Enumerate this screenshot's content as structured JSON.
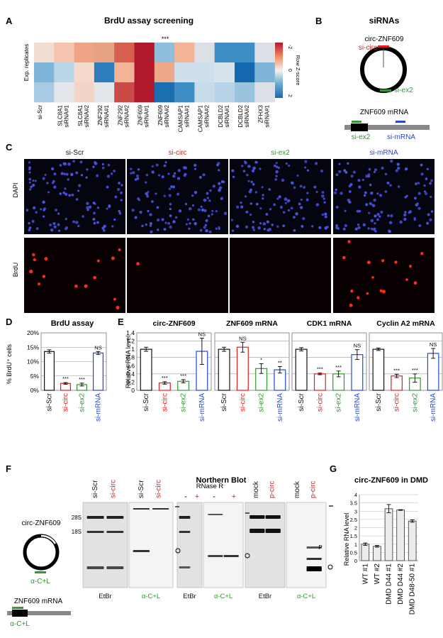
{
  "panels": {
    "A": {
      "letter": "A",
      "title": "BrdU assay screening",
      "ylabel": "Exp. replicates",
      "significance": "***",
      "colorbar_label": "Row Z-score",
      "colorbar_ticks": [
        "-2",
        "0",
        "2"
      ],
      "columns": [
        "si-Scr",
        "SLC8A1 siRNA#1",
        "SLC8A1 siRNA#2",
        "ZNF292 siRNA#1",
        "ZNF292 siRNA#2",
        "ZNF609 siRNA#1",
        "ZNF609 siRNA#2",
        "CAMSAP1 siRNA#1",
        "CAMSAP1 siRNA#2",
        "DCBLD2 siRNA#1",
        "DCBLD2 siRNA#2",
        "ZFHX3 siRNA#1"
      ],
      "col_line1": [
        "si-Scr",
        "SLC8A1",
        "SLC8A1",
        "ZNF292",
        "ZNF292",
        "ZNF609",
        "ZNF609",
        "CAMSAP1",
        "CAMSAP1",
        "DCBLD2",
        "DCBLD2",
        "ZFHX3"
      ],
      "col_line2": [
        "",
        "siRNA#1",
        "siRNA#2",
        "siRNA#1",
        "siRNA#2",
        "siRNA#1",
        "siRNA#2",
        "siRNA#1",
        "siRNA#2",
        "siRNA#1",
        "siRNA#2",
        "siRNA#1"
      ],
      "rows": [
        [
          "#f0dcd1",
          "#f5c4ae",
          "#eea485",
          "#e7a284",
          "#d76050",
          "#b2182b",
          "#8fbfdd",
          "#f3b396",
          "#dcdfe6",
          "#3d8ec5",
          "#3d8ec5",
          "#dcdfe6"
        ],
        [
          "#7fb5d9",
          "#b9d5e8",
          "#f5dacc",
          "#2d7dbc",
          "#f3b396",
          "#b2182b",
          "#f0a88a",
          "#cfe0ec",
          "#cfe0ec",
          "#d7e3ec",
          "#1468ae",
          "#7fb5d9"
        ],
        [
          "#a6cbe3",
          "#e3e6ea",
          "#f3d5c8",
          "#e3e6ea",
          "#c94a47",
          "#b2182b",
          "#1a6fb2",
          "#3d8ec5",
          "#c6dcea",
          "#b6d3e7",
          "#9ac3df",
          "#dcdfe6"
        ]
      ]
    },
    "B": {
      "letter": "B",
      "title": "siRNAs",
      "circ_label": "circ-ZNF609",
      "si_circ": "si-circ",
      "si_ex2": "si-ex2",
      "mrna_label": "ZNF609 mRNA",
      "si_ex2_2": "si-ex2",
      "si_mrna": "si-mRNA"
    },
    "C": {
      "letter": "C",
      "columns": [
        "si-Scr",
        "si-circ",
        "si-ex2",
        "si-mRNA"
      ],
      "rows": [
        "DAPI",
        "BrdU"
      ]
    },
    "D": {
      "letter": "D",
      "title": "BrdU assay",
      "ylabel": "% BrdU⁺ cells",
      "ticks": [
        "0%",
        "5%",
        "10%",
        "15%",
        "20%"
      ]
    },
    "E": {
      "letter": "E",
      "ylabel": "Relative RNA level",
      "ticks": [
        "0",
        "0.2",
        "0.4",
        "0.6",
        "0.8",
        "1",
        "1.2",
        "1.4"
      ],
      "subtitles": [
        "circ-ZNF609",
        "ZNF609 mRNA",
        "CDK1 mRNA",
        "Cyclin A2 mRNA"
      ]
    },
    "F": {
      "letter": "F",
      "title": "Northern Blot",
      "circ_label": "circ-ZNF609",
      "probe": "α-C+L",
      "mrna_label": "ZNF609 mRNA",
      "probe2": "α-C+L",
      "gel1_lanes": [
        "si-Scr",
        "si-circ"
      ],
      "gel2_lanes": [
        "si-Scr",
        "si-circ"
      ],
      "rnase_label": "RNase R",
      "rnase_minus": "-",
      "rnase_plus": "+",
      "gel5_lanes": [
        "mock",
        "p-circ"
      ],
      "gel6_lanes": [
        "mock",
        "p-circ"
      ],
      "s28": "28S",
      "s18": "18S",
      "p_label": "P",
      "stain_etbr": "EtBr",
      "stain_probe": "α-C+L"
    },
    "G": {
      "letter": "G",
      "title": "circ-ZNF609 in DMD",
      "ylabel": "Relative RNA level",
      "ticks": [
        "0",
        "0.5",
        "1",
        "1.5",
        "2",
        "2.5",
        "3",
        "3.5",
        "4"
      ]
    }
  },
  "colors": {
    "black": "#111111",
    "red": "#e41a1c",
    "green": "#2f9a2f",
    "blue": "#2447d8",
    "dapi": "#4a55e8",
    "brdu": "#ff2a1a"
  },
  "chart_data": [
    {
      "type": "bar",
      "title": "BrdU assay",
      "ylabel": "% BrdU⁺ cells",
      "ylim": [
        0,
        20
      ],
      "categories": [
        "si-Scr",
        "si-circ",
        "si-ex2",
        "si-mRNA"
      ],
      "values": [
        13.5,
        2.4,
        2.0,
        13.0
      ],
      "errors": [
        0.6,
        0.3,
        0.5,
        0.5
      ],
      "significance": [
        "",
        "***",
        "***",
        "NS"
      ],
      "colors": [
        "#111111",
        "#e41a1c",
        "#2f9a2f",
        "#2447d8"
      ]
    },
    {
      "type": "bar",
      "title": "circ-ZNF609",
      "ylabel": "Relative RNA level",
      "ylim": [
        0,
        1.4
      ],
      "categories": [
        "si-Scr",
        "si-circ",
        "si-ex2",
        "si-mRNA"
      ],
      "values": [
        1.0,
        0.18,
        0.22,
        0.95
      ],
      "errors": [
        0.05,
        0.03,
        0.04,
        0.32
      ],
      "significance": [
        "",
        "***",
        "***",
        "NS"
      ],
      "colors": [
        "#111111",
        "#e41a1c",
        "#2f9a2f",
        "#2447d8"
      ]
    },
    {
      "type": "bar",
      "title": "ZNF609 mRNA",
      "ylim": [
        0,
        1.4
      ],
      "categories": [
        "si-Scr",
        "si-circ",
        "si-ex2",
        "si-mRNA"
      ],
      "values": [
        1.0,
        1.05,
        0.53,
        0.5
      ],
      "errors": [
        0.05,
        0.12,
        0.12,
        0.08
      ],
      "significance": [
        "",
        "NS",
        "*",
        "**"
      ],
      "colors": [
        "#111111",
        "#e41a1c",
        "#2f9a2f",
        "#2447d8"
      ]
    },
    {
      "type": "bar",
      "title": "CDK1 mRNA",
      "ylim": [
        0,
        1.4
      ],
      "categories": [
        "si-Scr",
        "si-circ",
        "si-ex2",
        "si-mRNA"
      ],
      "values": [
        1.0,
        0.4,
        0.4,
        0.87
      ],
      "errors": [
        0.04,
        0.02,
        0.07,
        0.12
      ],
      "significance": [
        "",
        "***",
        "***",
        "NS"
      ],
      "colors": [
        "#111111",
        "#e41a1c",
        "#2f9a2f",
        "#2447d8"
      ]
    },
    {
      "type": "bar",
      "title": "Cyclin A2 mRNA",
      "ylim": [
        0,
        1.4
      ],
      "categories": [
        "si-Scr",
        "si-circ",
        "si-ex2",
        "si-mRNA"
      ],
      "values": [
        1.0,
        0.35,
        0.3,
        0.9
      ],
      "errors": [
        0.03,
        0.04,
        0.1,
        0.12
      ],
      "significance": [
        "",
        "***",
        "***",
        "NS"
      ],
      "colors": [
        "#111111",
        "#e41a1c",
        "#2f9a2f",
        "#2447d8"
      ]
    },
    {
      "type": "bar",
      "title": "circ-ZNF609 in DMD",
      "ylabel": "Relative RNA level",
      "ylim": [
        0,
        4
      ],
      "categories": [
        "WT #1",
        "WT #2",
        "DMD D44 #1",
        "DMD D44 #2",
        "DMD D48-50 #1"
      ],
      "values": [
        1.0,
        0.87,
        3.15,
        3.07,
        2.4
      ],
      "errors": [
        0.07,
        0.05,
        0.25,
        0.02,
        0.07
      ]
    }
  ]
}
